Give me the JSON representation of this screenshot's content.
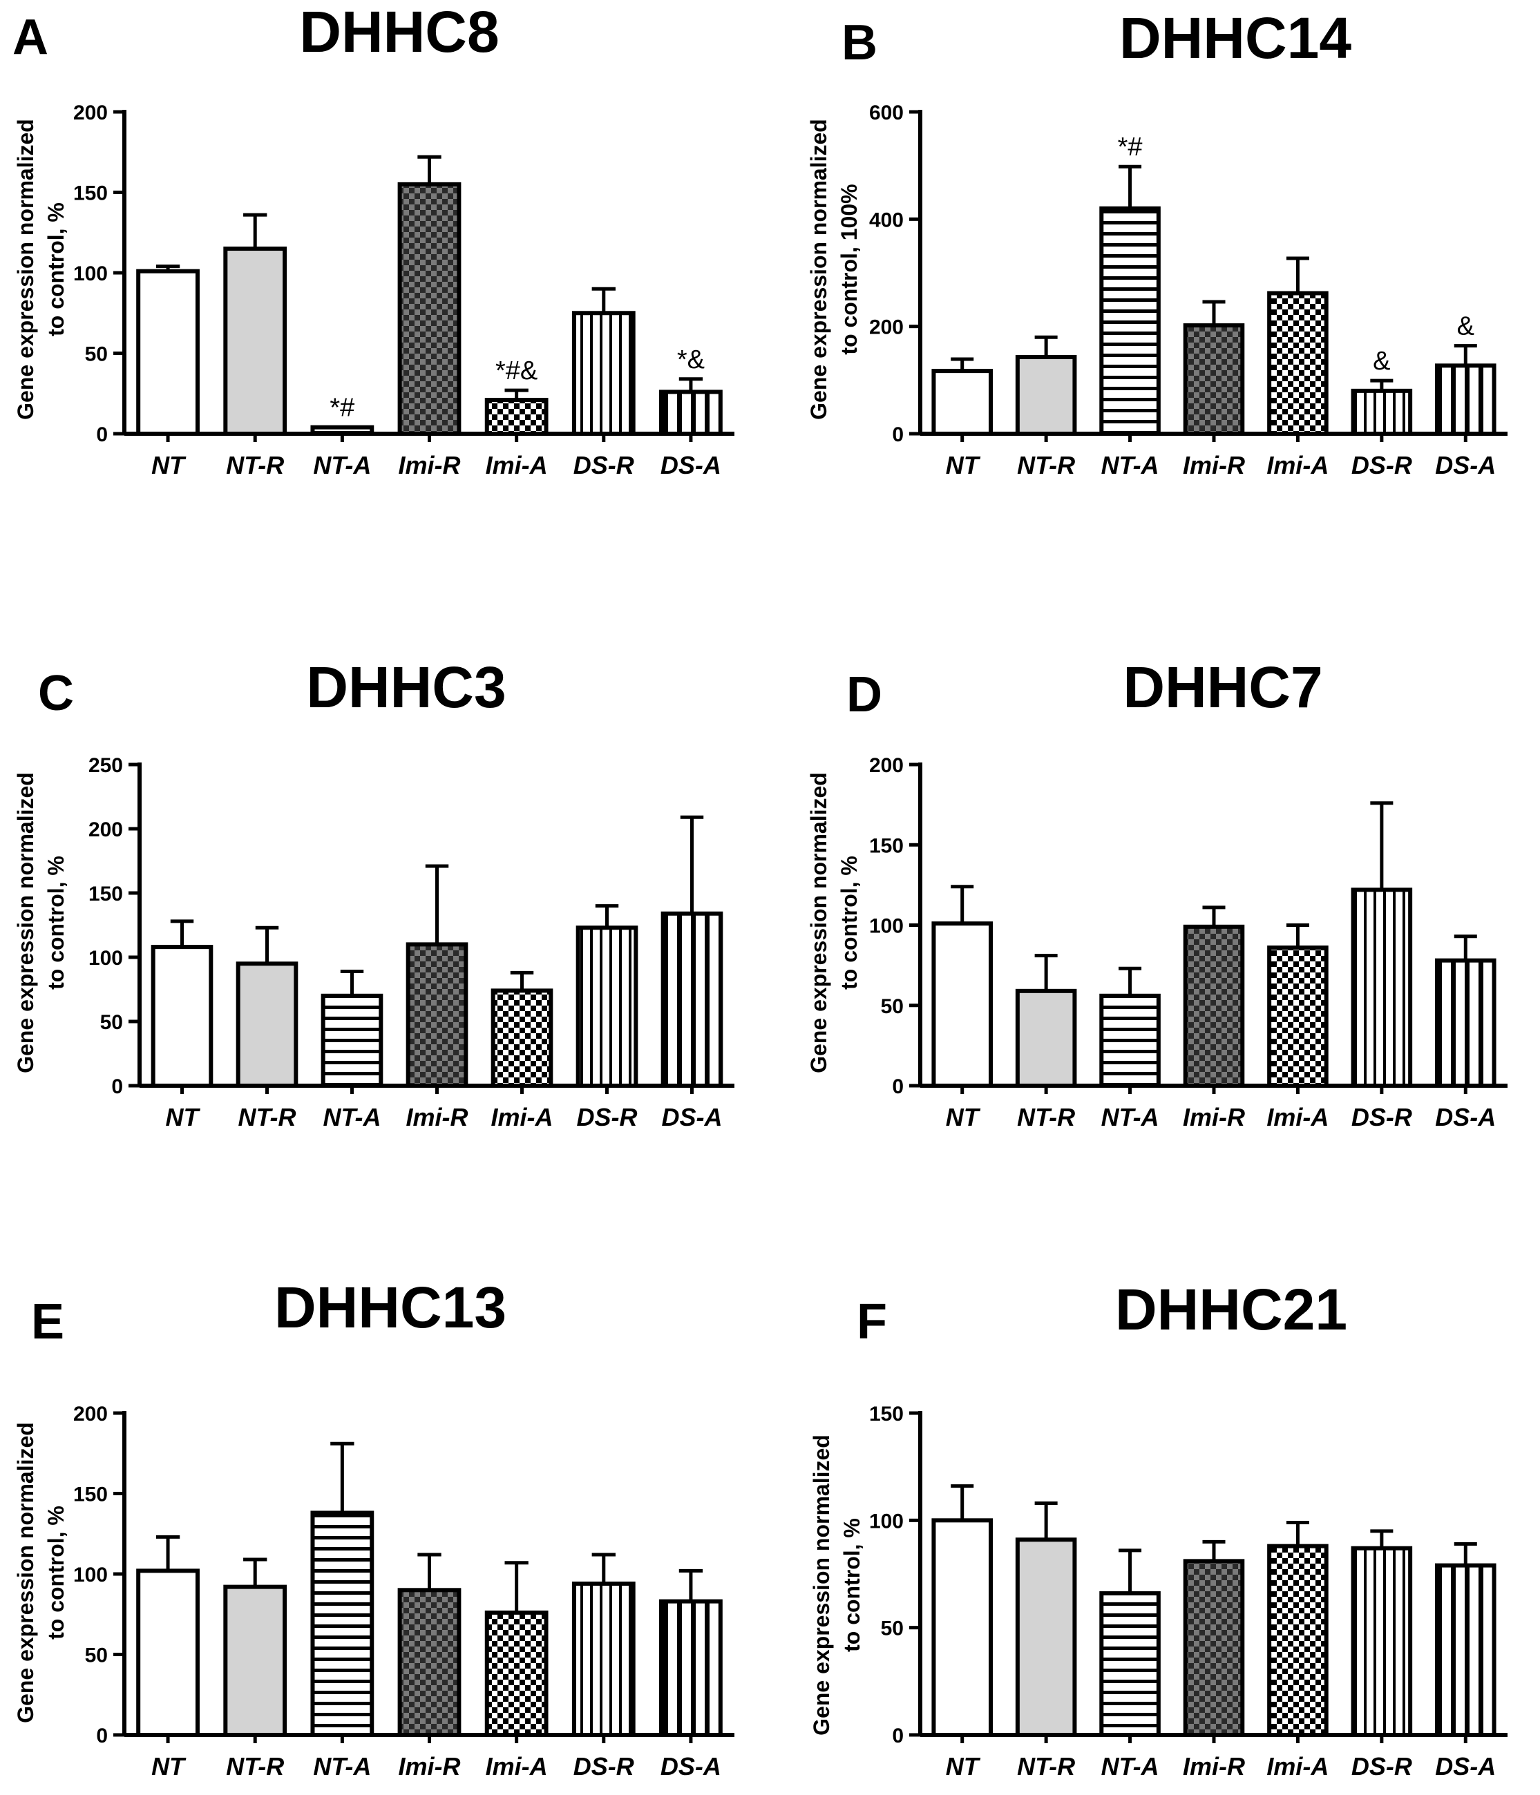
{
  "figure": {
    "colors": {
      "bar_stroke": "#000000",
      "gray_fill": "#d3d3d3",
      "background": "#ffffff"
    }
  },
  "chart_data": [
    {
      "panel": "A",
      "title": "DHHC8",
      "type": "bar",
      "ylabel_lines": [
        "Gene expression normalized",
        "to control, %"
      ],
      "ylim": [
        0,
        200
      ],
      "yticks": [
        0,
        50,
        100,
        150,
        200
      ],
      "categories": [
        "NT",
        "NT-R",
        "NT-A",
        "Imi-R",
        "Imi-A",
        "DS-R",
        "DS-A"
      ],
      "values": [
        101,
        115,
        4,
        155,
        21,
        75,
        26
      ],
      "errors": [
        3,
        21,
        0,
        17,
        6,
        15,
        8
      ],
      "annotations": [
        "",
        "",
        "*#",
        "",
        "*#&",
        "",
        "*&"
      ]
    },
    {
      "panel": "B",
      "title": "DHHC14",
      "type": "bar",
      "ylabel_lines": [
        "Gene expression normalized",
        "to control, 100%"
      ],
      "ylim": [
        0,
        600
      ],
      "yticks": [
        0,
        200,
        400,
        600
      ],
      "categories": [
        "NT",
        "NT-R",
        "NT-A",
        "Imi-R",
        "Imi-A",
        "DS-R",
        "DS-A"
      ],
      "values": [
        117,
        143,
        420,
        202,
        262,
        80,
        127
      ],
      "errors": [
        22,
        37,
        78,
        44,
        65,
        19,
        37
      ],
      "annotations": [
        "",
        "",
        "*#",
        "",
        "",
        "&",
        "&"
      ]
    },
    {
      "panel": "C",
      "title": "DHHC3",
      "type": "bar",
      "ylabel_lines": [
        "Gene expression normalized",
        "to control, %"
      ],
      "ylim": [
        0,
        250
      ],
      "yticks": [
        0,
        50,
        100,
        150,
        200,
        250
      ],
      "categories": [
        "NT",
        "NT-R",
        "NT-A",
        "Imi-R",
        "Imi-A",
        "DS-R",
        "DS-A"
      ],
      "values": [
        108,
        95,
        70,
        110,
        74,
        123,
        134
      ],
      "errors": [
        20,
        28,
        19,
        61,
        14,
        17,
        75
      ],
      "annotations": [
        "",
        "",
        "",
        "",
        "",
        "",
        ""
      ]
    },
    {
      "panel": "D",
      "title": "DHHC7",
      "type": "bar",
      "ylabel_lines": [
        "Gene expression normalized",
        "to control, %"
      ],
      "ylim": [
        0,
        200
      ],
      "yticks": [
        0,
        50,
        100,
        150,
        200
      ],
      "categories": [
        "NT",
        "NT-R",
        "NT-A",
        "Imi-R",
        "Imi-A",
        "DS-R",
        "DS-A"
      ],
      "values": [
        101,
        59,
        56,
        99,
        86,
        122,
        78
      ],
      "errors": [
        23,
        22,
        17,
        12,
        14,
        54,
        15
      ],
      "annotations": [
        "",
        "",
        "",
        "",
        "",
        "",
        ""
      ]
    },
    {
      "panel": "E",
      "title": "DHHC13",
      "type": "bar",
      "ylabel_lines": [
        "Gene expression normalized",
        "to control, %"
      ],
      "ylim": [
        0,
        200
      ],
      "yticks": [
        0,
        50,
        100,
        150,
        200
      ],
      "categories": [
        "NT",
        "NT-R",
        "NT-A",
        "Imi-R",
        "Imi-A",
        "DS-R",
        "DS-A"
      ],
      "values": [
        102,
        92,
        138,
        90,
        76,
        94,
        83
      ],
      "errors": [
        21,
        17,
        43,
        22,
        31,
        18,
        19
      ],
      "annotations": [
        "",
        "",
        "",
        "",
        "",
        "",
        ""
      ]
    },
    {
      "panel": "F",
      "title": "DHHC21",
      "type": "bar",
      "ylabel_lines": [
        "Gene expression normalized",
        "to control, %"
      ],
      "ylim": [
        0,
        150
      ],
      "yticks": [
        0,
        50,
        100,
        150
      ],
      "categories": [
        "NT",
        "NT-R",
        "NT-A",
        "Imi-R",
        "Imi-A",
        "DS-R",
        "DS-A"
      ],
      "values": [
        100,
        91,
        66,
        81,
        88,
        87,
        79
      ],
      "errors": [
        16,
        17,
        20,
        9,
        11,
        8,
        10
      ],
      "annotations": [
        "",
        "",
        "",
        "",
        "",
        "",
        ""
      ]
    }
  ]
}
